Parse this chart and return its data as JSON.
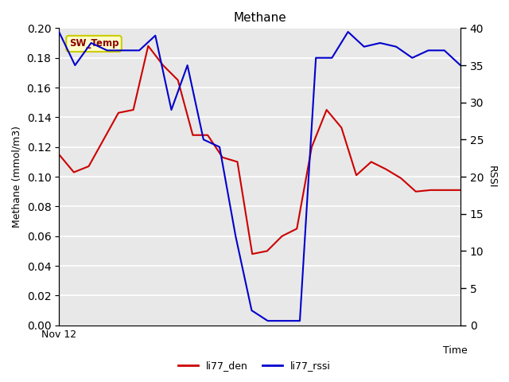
{
  "title": "Methane",
  "xlabel_right": "Time",
  "ylabel_left": "Methane (mmol/m3)",
  "ylabel_right": "RSSI",
  "annotation": "SW_Temp",
  "x_tick_label": "Nov 12",
  "ylim_left": [
    0.0,
    0.2
  ],
  "ylim_right": [
    0,
    40
  ],
  "background_color": "#e8e8e8",
  "li77_den_y": [
    0.115,
    0.103,
    0.107,
    0.125,
    0.143,
    0.145,
    0.188,
    0.175,
    0.165,
    0.128,
    0.128,
    0.113,
    0.11,
    0.048,
    0.05,
    0.06,
    0.065,
    0.12,
    0.145,
    0.133,
    0.101,
    0.11,
    0.105,
    0.099,
    0.09,
    0.091,
    0.091,
    0.091
  ],
  "li77_rssi_y": [
    39.5,
    35,
    38,
    37,
    37,
    37,
    39,
    29,
    35,
    25,
    24,
    12,
    2,
    0.6,
    0.6,
    0.6,
    36,
    36,
    39.5,
    37.5,
    38,
    37.5,
    36,
    37,
    37,
    35
  ],
  "den_color": "#cc0000",
  "rssi_color": "#0000cc",
  "grid_color": "#ffffff",
  "legend_den": "li77_den",
  "legend_rssi": "li77_rssi",
  "left_yticks": [
    0.0,
    0.02,
    0.04,
    0.06,
    0.08,
    0.1,
    0.12,
    0.14,
    0.16,
    0.18,
    0.2
  ],
  "right_yticks": [
    0,
    5,
    10,
    15,
    20,
    25,
    30,
    35,
    40
  ],
  "annotation_facecolor": "#ffffcc",
  "annotation_edgecolor": "#cccc00",
  "annotation_textcolor": "#8b0000"
}
